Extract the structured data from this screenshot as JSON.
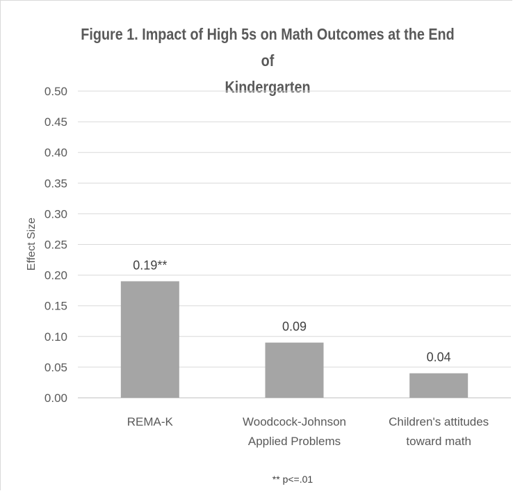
{
  "chart_data": {
    "type": "bar",
    "title": "Figure 1.  Impact of High 5s on Math Outcomes at the End of Kindergarten",
    "title_lines": [
      "Figure 1.  Impact of High 5s on Math Outcomes at the End of",
      "Kindergarten"
    ],
    "ylabel": "Effect Size",
    "xlabel": "",
    "ylim": [
      0,
      0.5
    ],
    "y_ticks": [
      "0.00",
      "0.05",
      "0.10",
      "0.15",
      "0.20",
      "0.25",
      "0.30",
      "0.35",
      "0.40",
      "0.45",
      "0.50"
    ],
    "categories": [
      [
        "REMA-K"
      ],
      [
        "Woodcock-Johnson",
        "Applied Problems"
      ],
      [
        "Children's attitudes",
        "toward math"
      ]
    ],
    "values": [
      0.19,
      0.09,
      0.04
    ],
    "data_labels": [
      "0.19**",
      "0.09",
      "0.04"
    ],
    "bar_color": "#a5a5a5",
    "grid": true,
    "footnote": "** p<=.01"
  }
}
